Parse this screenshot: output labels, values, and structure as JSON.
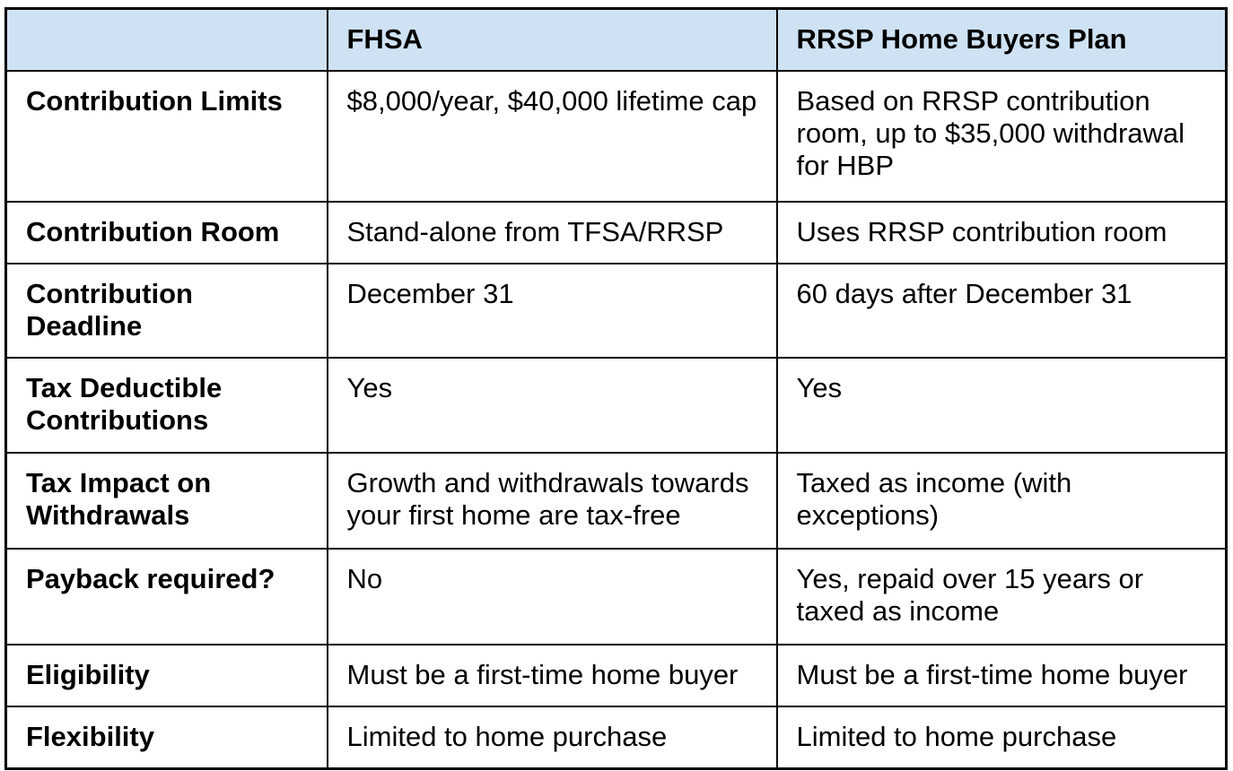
{
  "table": {
    "columns": [
      "FHSA",
      "RRSP Home Buyers Plan"
    ],
    "corner_label": "",
    "rows": [
      {
        "label": "Contribution Limits",
        "fhsa": "$8,000/year, $40,000 lifetime cap",
        "rrsp": "Based on RRSP contribution room, up to $35,000 withdrawal for HBP"
      },
      {
        "label": "Contribution Room",
        "fhsa": "Stand-alone from TFSA/RRSP",
        "rrsp": "Uses RRSP contribution room"
      },
      {
        "label": "Contribution Deadline",
        "fhsa": "December 31",
        "rrsp": "60 days after December 31"
      },
      {
        "label": "Tax Deductible Contributions",
        "fhsa": "Yes",
        "rrsp": "Yes"
      },
      {
        "label": "Tax Impact on Withdrawals",
        "fhsa": "Growth and withdrawals towards your first home are tax-free",
        "rrsp": "Taxed as income (with exceptions)"
      },
      {
        "label": "Payback required?",
        "fhsa": "No",
        "rrsp": "Yes, repaid over 15 years or taxed as income"
      },
      {
        "label": "Eligibility",
        "fhsa": "Must be a first-time home buyer",
        "rrsp": "Must be a first-time home buyer"
      },
      {
        "label": "Flexibility",
        "fhsa": "Limited to home purchase",
        "rrsp": "Limited to home purchase"
      }
    ]
  },
  "colors": {
    "header_bg": "#cfe2f3",
    "border": "#000000",
    "text": "#000000",
    "background": "#ffffff"
  }
}
